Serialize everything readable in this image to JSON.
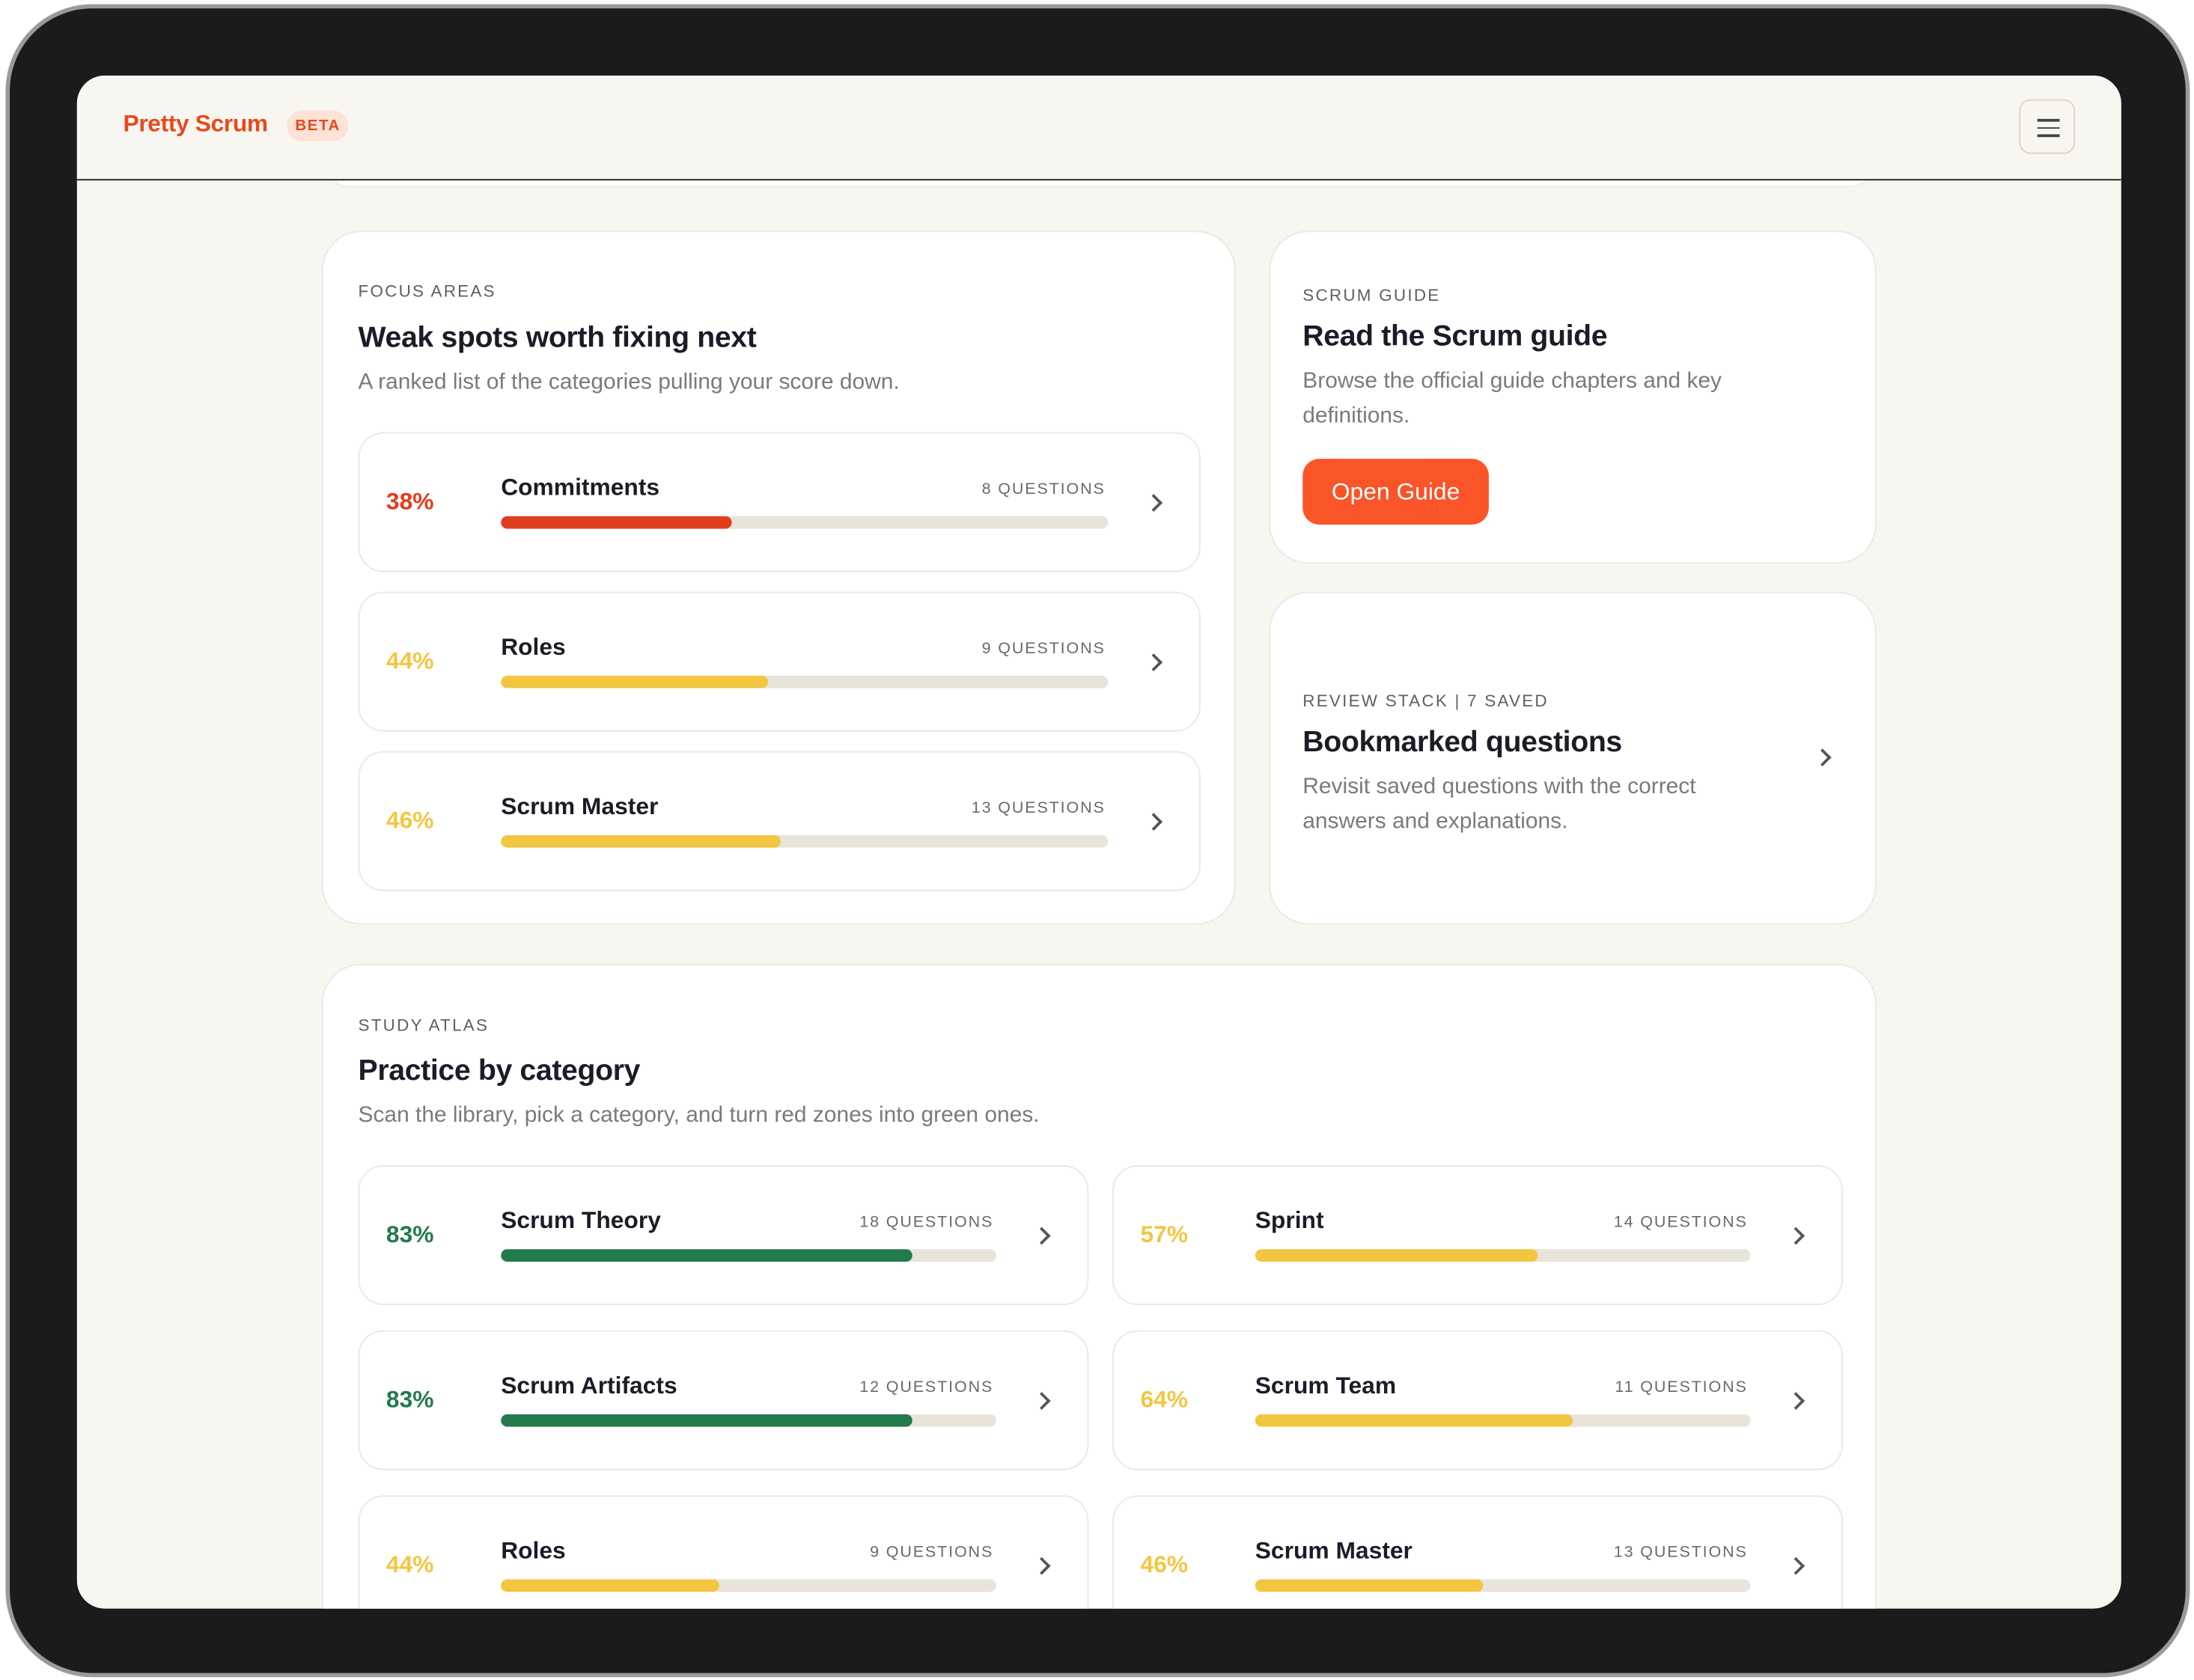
{
  "header": {
    "brand": "Pretty Scrum",
    "badge": "BETA"
  },
  "focus": {
    "eyebrow": "FOCUS AREAS",
    "title": "Weak spots worth fixing next",
    "subtitle": "A ranked list of the categories pulling your score down.",
    "items": [
      {
        "name": "Commitments",
        "score": {
          "value": 38,
          "label": "38%"
        },
        "questions": "8 QUESTIONS",
        "color": "#e03d1c"
      },
      {
        "name": "Roles",
        "score": {
          "value": 44,
          "label": "44%"
        },
        "questions": "9 QUESTIONS",
        "color": "#f2c641"
      },
      {
        "name": "Scrum Master",
        "score": {
          "value": 46,
          "label": "46%"
        },
        "questions": "13 QUESTIONS",
        "color": "#f2c641"
      }
    ]
  },
  "guide": {
    "eyebrow": "SCRUM GUIDE",
    "title": "Read the Scrum guide",
    "text": "Browse the official guide chapters and key definitions.",
    "button": "Open Guide"
  },
  "review": {
    "eyebrow": "REVIEW STACK | 7 SAVED",
    "title": "Bookmarked questions",
    "text": "Revisit saved questions with the correct answers and explanations."
  },
  "atlas": {
    "eyebrow": "STUDY ATLAS",
    "title": "Practice by category",
    "subtitle": "Scan the library, pick a category, and turn red zones into green ones.",
    "items": [
      {
        "name": "Scrum Theory",
        "score": {
          "value": 83,
          "label": "83%"
        },
        "questions": "18 QUESTIONS",
        "color": "#237a4d"
      },
      {
        "name": "Sprint",
        "score": {
          "value": 57,
          "label": "57%"
        },
        "questions": "14 QUESTIONS",
        "color": "#f2c641"
      },
      {
        "name": "Scrum Artifacts",
        "score": {
          "value": 83,
          "label": "83%"
        },
        "questions": "12 QUESTIONS",
        "color": "#237a4d"
      },
      {
        "name": "Scrum Team",
        "score": {
          "value": 64,
          "label": "64%"
        },
        "questions": "11 QUESTIONS",
        "color": "#f2c641"
      },
      {
        "name": "Roles",
        "score": {
          "value": 44,
          "label": "44%"
        },
        "questions": "9 QUESTIONS",
        "color": "#f2c641"
      },
      {
        "name": "Scrum Master",
        "score": {
          "value": 46,
          "label": "46%"
        },
        "questions": "13 QUESTIONS",
        "color": "#f2c641"
      }
    ]
  }
}
